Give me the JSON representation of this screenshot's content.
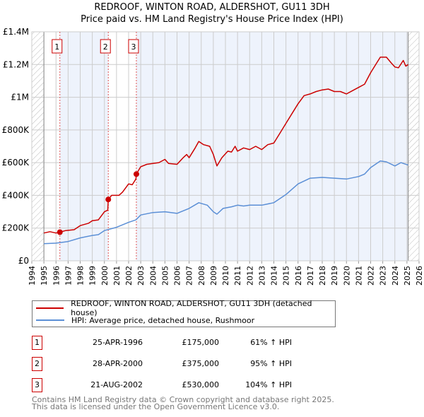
{
  "title": "REDROOF, WINTON ROAD, ALDERSHOT, GU11 3DH",
  "subtitle": "Price paid vs. HM Land Registry's House Price Index (HPI)",
  "colors": {
    "property": "#cc0000",
    "hpi": "#5b8fd6",
    "shade": "#eef3fc"
  },
  "chart_data": {
    "type": "line",
    "title": "Price paid vs. HM Land Registry's House Price Index (HPI)",
    "xlim": [
      1994,
      2026
    ],
    "ylim": [
      0,
      1400000
    ],
    "x_ticks": [
      "1994",
      "1995",
      "1996",
      "1997",
      "1998",
      "1999",
      "2000",
      "2001",
      "2002",
      "2003",
      "2004",
      "2005",
      "2006",
      "2007",
      "2008",
      "2009",
      "2010",
      "2011",
      "2012",
      "2013",
      "2014",
      "2015",
      "2016",
      "2017",
      "2018",
      "2019",
      "2020",
      "2021",
      "2022",
      "2023",
      "2024",
      "2025",
      "2026"
    ],
    "y_ticks": [
      {
        "v": 0,
        "label": "£0"
      },
      {
        "v": 200000,
        "label": "£200K"
      },
      {
        "v": 400000,
        "label": "£400K"
      },
      {
        "v": 600000,
        "label": "£600K"
      },
      {
        "v": 800000,
        "label": "£800K"
      },
      {
        "v": 1000000,
        "label": "£1M"
      },
      {
        "v": 1200000,
        "label": "£1.2M"
      },
      {
        "v": 1400000,
        "label": "£1.4M"
      }
    ],
    "grid": true,
    "series": [
      {
        "name": "REDROOF, WINTON ROAD, ALDERSHOT, GU11 3DH (detached house)",
        "x": [
          1995.0,
          1995.5,
          1996.0,
          1996.32,
          1996.8,
          1997.5,
          1998.0,
          1998.7,
          1999.0,
          1999.5,
          2000.0,
          2000.28,
          2000.32,
          2000.6,
          2001.2,
          2001.5,
          2002.0,
          2002.3,
          2002.6,
          2002.64,
          2003.0,
          2003.5,
          2004.0,
          2004.5,
          2005.0,
          2005.3,
          2006.0,
          2006.5,
          2006.8,
          2007.0,
          2007.5,
          2007.8,
          2008.2,
          2008.7,
          2009.0,
          2009.3,
          2009.7,
          2010.2,
          2010.5,
          2010.8,
          2011.0,
          2011.5,
          2012.0,
          2012.5,
          2013.0,
          2013.5,
          2014.0,
          2014.5,
          2015.0,
          2015.5,
          2016.0,
          2016.5,
          2017.0,
          2017.5,
          2018.0,
          2018.5,
          2019.0,
          2019.5,
          2020.0,
          2020.5,
          2021.0,
          2021.5,
          2022.0,
          2022.5,
          2022.8,
          2023.3,
          2023.7,
          2024.0,
          2024.3,
          2024.7,
          2024.9,
          2025.1
        ],
        "y": [
          170000,
          178000,
          170000,
          175000,
          185000,
          190000,
          215000,
          230000,
          245000,
          250000,
          300000,
          310000,
          375000,
          400000,
          400000,
          420000,
          470000,
          465000,
          500000,
          530000,
          575000,
          590000,
          595000,
          600000,
          620000,
          595000,
          590000,
          630000,
          650000,
          630000,
          690000,
          730000,
          710000,
          700000,
          650000,
          580000,
          630000,
          670000,
          665000,
          700000,
          670000,
          690000,
          680000,
          700000,
          680000,
          710000,
          720000,
          780000,
          840000,
          900000,
          960000,
          1010000,
          1020000,
          1035000,
          1045000,
          1050000,
          1035000,
          1035000,
          1020000,
          1040000,
          1060000,
          1080000,
          1150000,
          1210000,
          1245000,
          1245000,
          1210000,
          1185000,
          1180000,
          1225000,
          1190000,
          1200000
        ]
      },
      {
        "name": "HPI: Average price, detached house, Rushmoor",
        "x": [
          1995.0,
          1996.0,
          1997.0,
          1998.0,
          1999.0,
          1999.5,
          2000.0,
          2001.0,
          2002.0,
          2002.6,
          2003.0,
          2004.0,
          2005.0,
          2006.0,
          2007.0,
          2007.8,
          2008.5,
          2009.0,
          2009.3,
          2009.8,
          2010.5,
          2011.0,
          2011.5,
          2012.0,
          2013.0,
          2014.0,
          2015.0,
          2016.0,
          2017.0,
          2018.0,
          2019.0,
          2020.0,
          2021.0,
          2021.5,
          2022.0,
          2022.8,
          2023.3,
          2024.0,
          2024.5,
          2025.1
        ],
        "y": [
          105000,
          108000,
          118000,
          140000,
          155000,
          160000,
          185000,
          205000,
          235000,
          250000,
          280000,
          295000,
          300000,
          290000,
          320000,
          355000,
          340000,
          300000,
          285000,
          320000,
          330000,
          340000,
          335000,
          340000,
          340000,
          355000,
          405000,
          470000,
          505000,
          510000,
          505000,
          500000,
          515000,
          530000,
          570000,
          610000,
          605000,
          580000,
          600000,
          585000
        ]
      }
    ],
    "sales": [
      {
        "label": "1",
        "x": 1996.32,
        "y": 175000
      },
      {
        "label": "2",
        "x": 2000.32,
        "y": 375000
      },
      {
        "label": "3",
        "x": 2002.64,
        "y": 530000
      }
    ]
  },
  "legend": {
    "property": "REDROOF, WINTON ROAD, ALDERSHOT, GU11 3DH (detached house)",
    "hpi": "HPI: Average price, detached house, Rushmoor"
  },
  "transactions": [
    {
      "num": "1",
      "date": "25-APR-1996",
      "price": "£175,000",
      "hpi": "61% ↑ HPI"
    },
    {
      "num": "2",
      "date": "28-APR-2000",
      "price": "£375,000",
      "hpi": "95% ↑ HPI"
    },
    {
      "num": "3",
      "date": "21-AUG-2002",
      "price": "£530,000",
      "hpi": "104% ↑ HPI"
    }
  ],
  "footer": {
    "line1": "Contains HM Land Registry data © Crown copyright and database right 2025.",
    "line2": "This data is licensed under the Open Government Licence v3.0."
  }
}
